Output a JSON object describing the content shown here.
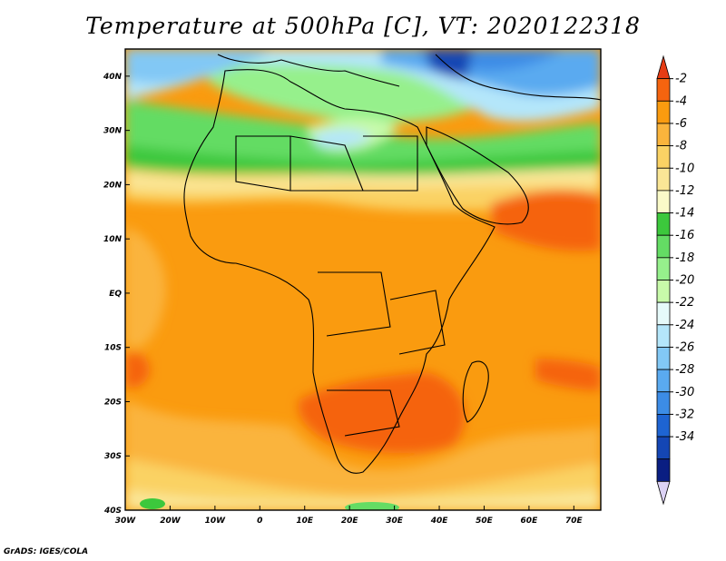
{
  "title": "Temperature at 500hPa [C], VT: 2020122318",
  "credit": "GrADS: IGES/COLA",
  "map": {
    "lon_range": [
      -30,
      76
    ],
    "lat_range": [
      -40,
      45
    ],
    "lon_ticks": [
      {
        "lon": -30,
        "label": "30W"
      },
      {
        "lon": -20,
        "label": "20W"
      },
      {
        "lon": -10,
        "label": "10W"
      },
      {
        "lon": 0,
        "label": "0"
      },
      {
        "lon": 10,
        "label": "10E"
      },
      {
        "lon": 20,
        "label": "20E"
      },
      {
        "lon": 30,
        "label": "30E"
      },
      {
        "lon": 40,
        "label": "40E"
      },
      {
        "lon": 50,
        "label": "50E"
      },
      {
        "lon": 60,
        "label": "60E"
      },
      {
        "lon": 70,
        "label": "70E"
      }
    ],
    "lat_ticks": [
      {
        "lat": 40,
        "label": "40N"
      },
      {
        "lat": 30,
        "label": "30N"
      },
      {
        "lat": 20,
        "label": "20N"
      },
      {
        "lat": 10,
        "label": "10N"
      },
      {
        "lat": 0,
        "label": "EQ"
      },
      {
        "lat": -10,
        "label": "10S"
      },
      {
        "lat": -20,
        "label": "20S"
      },
      {
        "lat": -30,
        "label": "30S"
      },
      {
        "lat": -40,
        "label": "40S"
      }
    ]
  },
  "colorbar": {
    "labels": [
      "-2",
      "-4",
      "-6",
      "-8",
      "-10",
      "-12",
      "-14",
      "-16",
      "-18",
      "-20",
      "-22",
      "-24",
      "-26",
      "-28",
      "-30",
      "-32",
      "-34"
    ],
    "colors": [
      "#e63c14",
      "#f5640f",
      "#fa9b0f",
      "#fab43c",
      "#fad264",
      "#fae696",
      "#fafac8",
      "#3cc83c",
      "#64dc64",
      "#96f08c",
      "#c8faaa",
      "#e6fafa",
      "#b4e6fa",
      "#82c8f5",
      "#5aaaf0",
      "#3c8ce6",
      "#1e64d2",
      "#1446b4",
      "#0a1e82",
      "#dcd2f5"
    ]
  }
}
